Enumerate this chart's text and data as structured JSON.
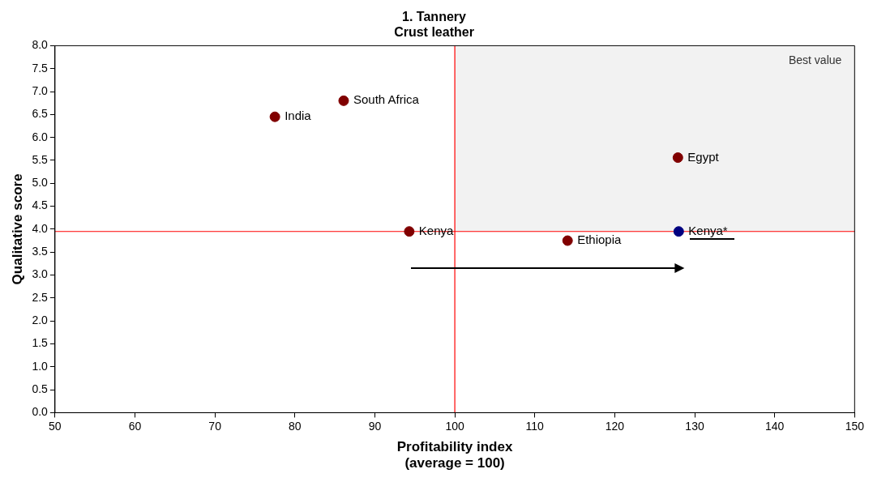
{
  "chart_data": {
    "type": "scatter",
    "title": "1. Tannery",
    "subtitle": "Crust leather",
    "xlabel": "Profitability index\n(average = 100)",
    "ylabel": "Qualitative score",
    "series": [
      {
        "x": [
          77.5,
          86.1,
          94.3,
          114.1,
          127.9,
          128
        ],
        "values": [
          6.45,
          6.8,
          3.95,
          3.75,
          5.56,
          3.95
        ],
        "colors": [
          "#800000",
          "#800000",
          "#800000",
          "#800000",
          "#800000",
          "#000080"
        ]
      }
    ],
    "annotations": [
      {
        "text": "India",
        "x": 77.5,
        "y": 6.45
      },
      {
        "text": "South Africa",
        "x": 86.1,
        "y": 6.8
      },
      {
        "text": "Kenya",
        "x": 94.3,
        "y": 3.95
      },
      {
        "text": "Ethiopia",
        "x": 114.1,
        "y": 3.75
      },
      {
        "text": "Egypt",
        "x": 127.9,
        "y": 5.56
      },
      {
        "text": "Kenya*",
        "x": 128,
        "y": 3.95
      }
    ],
    "ref_lines": [
      {
        "axis": "x",
        "value": 100,
        "color": "#ff0000"
      },
      {
        "axis": "y",
        "value": 3.95,
        "color": "#ff0000"
      }
    ],
    "bands": [
      {
        "axis": "x",
        "from": 100,
        "to": 150,
        "label": "Best value",
        "color": "#f2f2f2"
      }
    ],
    "xlim": [
      50,
      150
    ],
    "xticks": [
      50,
      60,
      70,
      80,
      90,
      100,
      110,
      120,
      130,
      140,
      150
    ],
    "ylim": [
      0,
      8
    ],
    "yticks": [
      {
        "value": 0,
        "label": "0.0"
      },
      0.5,
      {
        "value": 1,
        "label": "1.0"
      },
      1.5,
      {
        "value": 2,
        "label": "2.0"
      },
      2.5,
      {
        "value": 3,
        "label": "3.0"
      },
      3.5,
      {
        "value": 4,
        "label": "4.0"
      },
      4.5,
      {
        "value": 5,
        "label": "5.0"
      },
      5.5,
      {
        "value": 6,
        "label": "6.0"
      },
      6.5,
      {
        "value": 7,
        "label": "7.0"
      },
      7.5,
      {
        "value": 8,
        "label": "8.0"
      }
    ],
    "grid": false,
    "legend": false,
    "marker": "circle"
  }
}
